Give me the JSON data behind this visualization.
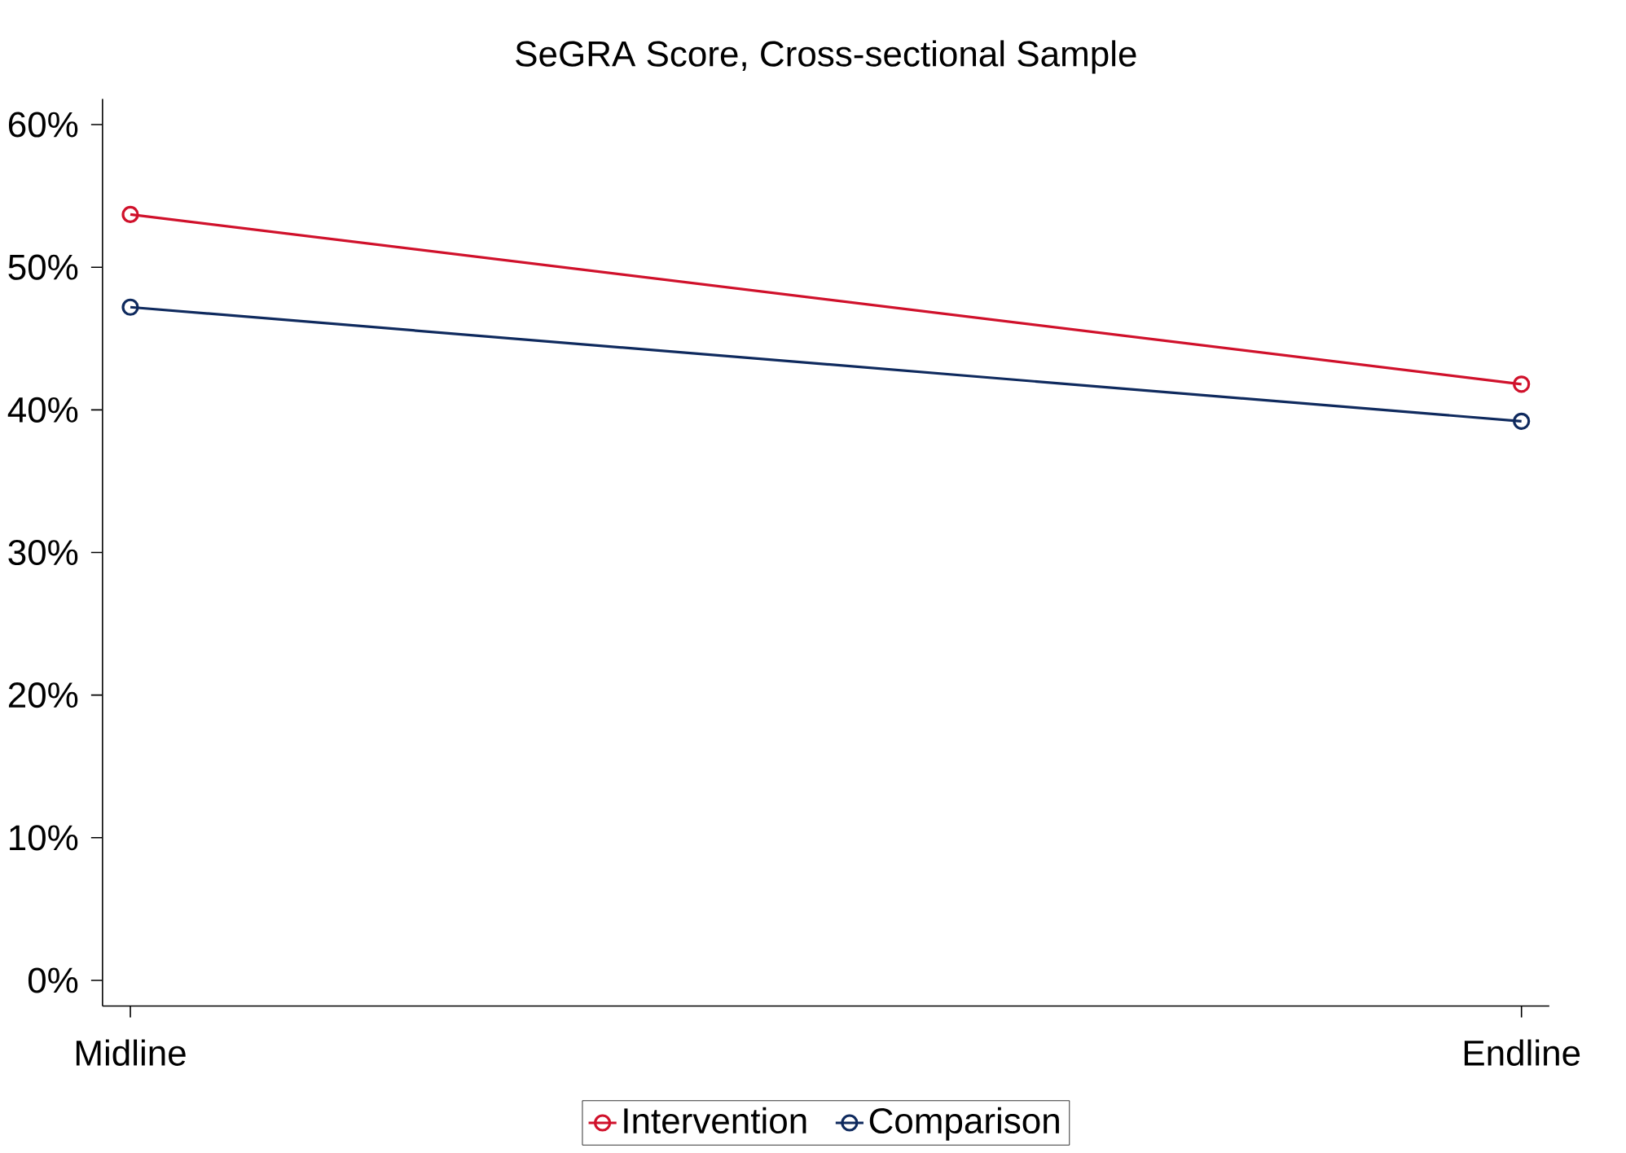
{
  "chart_data": {
    "type": "line",
    "title": "SeGRA Score, Cross-sectional Sample",
    "categories": [
      "Midline",
      "Endline"
    ],
    "series": [
      {
        "name": "Intervention",
        "color": "#d0112b",
        "values": [
          53.7,
          41.8
        ]
      },
      {
        "name": "Comparison",
        "color": "#0f2a5e",
        "values": [
          47.2,
          39.2
        ]
      }
    ],
    "ylim": [
      -1.8,
      61.8
    ],
    "yticks": [
      {
        "value": 0,
        "label": "0%"
      },
      {
        "value": 10,
        "label": "10%"
      },
      {
        "value": 20,
        "label": "20%"
      },
      {
        "value": 30,
        "label": "30%"
      },
      {
        "value": 40,
        "label": "40%"
      },
      {
        "value": 50,
        "label": "50%"
      },
      {
        "value": 60,
        "label": "60%"
      }
    ],
    "grid": false,
    "legend": "bottom",
    "marker": "circle",
    "line_style": "solid"
  }
}
